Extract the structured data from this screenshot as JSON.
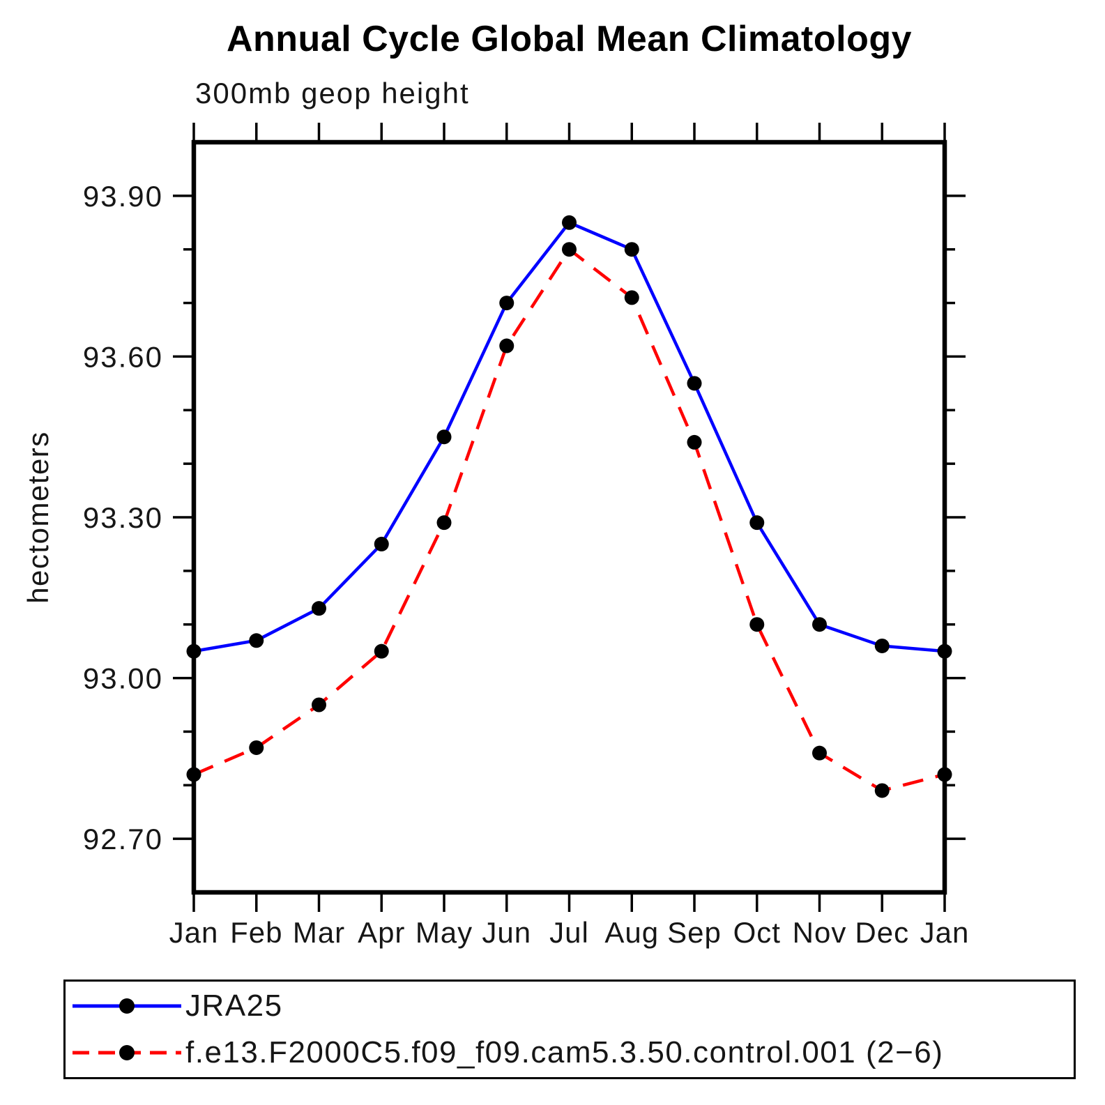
{
  "title": "Annual Cycle Global Mean Climatology",
  "subtitle": "300mb geop height",
  "y_axis_label": "hectometers",
  "legend": {
    "position": "bottom-left",
    "items": [
      {
        "label": "JRA25",
        "line_style": "solid",
        "color": "#0000ff",
        "marker": "filled-circle",
        "marker_color": "#000000"
      },
      {
        "label": "f.e13.F2000C5.f09_f09.cam5.3.50.control.001 (2−6)",
        "line_style": "dashed",
        "color": "#ff0000",
        "marker": "filled-circle",
        "marker_color": "#000000"
      }
    ]
  },
  "chart_data": {
    "type": "line",
    "title": "Annual Cycle Global Mean Climatology",
    "subtitle": "300mb geop height",
    "xlabel": "",
    "ylabel": "hectometers",
    "categories": [
      "Jan",
      "Feb",
      "Mar",
      "Apr",
      "May",
      "Jun",
      "Jul",
      "Aug",
      "Sep",
      "Oct",
      "Nov",
      "Dec",
      "Jan"
    ],
    "series": [
      {
        "name": "JRA25",
        "color": "#0000ff",
        "line_style": "solid",
        "marker": "filled-circle",
        "marker_color": "#000000",
        "values": [
          93.05,
          93.07,
          93.13,
          93.25,
          93.45,
          93.7,
          93.85,
          93.8,
          93.55,
          93.29,
          93.1,
          93.06,
          93.05
        ]
      },
      {
        "name": "f.e13.F2000C5.f09_f09.cam5.3.50.control.001 (2−6)",
        "color": "#ff0000",
        "line_style": "dashed",
        "marker": "filled-circle",
        "marker_color": "#000000",
        "values": [
          92.82,
          92.87,
          92.95,
          93.05,
          93.29,
          93.62,
          93.8,
          93.71,
          93.44,
          93.1,
          92.86,
          92.79,
          92.82
        ]
      }
    ],
    "ylim": [
      92.6,
      94.0
    ],
    "ytick_major": [
      {
        "value": 92.7,
        "label": "92.70"
      },
      {
        "value": 93.0,
        "label": "93.00"
      },
      {
        "value": 93.3,
        "label": "93.30"
      },
      {
        "value": 93.6,
        "label": "93.60"
      },
      {
        "value": 93.9,
        "label": "93.90"
      }
    ],
    "ytick_minor_step": 0.1,
    "grid": false,
    "frame": "box-with-outward-ticks",
    "legend_position": "bottom"
  }
}
